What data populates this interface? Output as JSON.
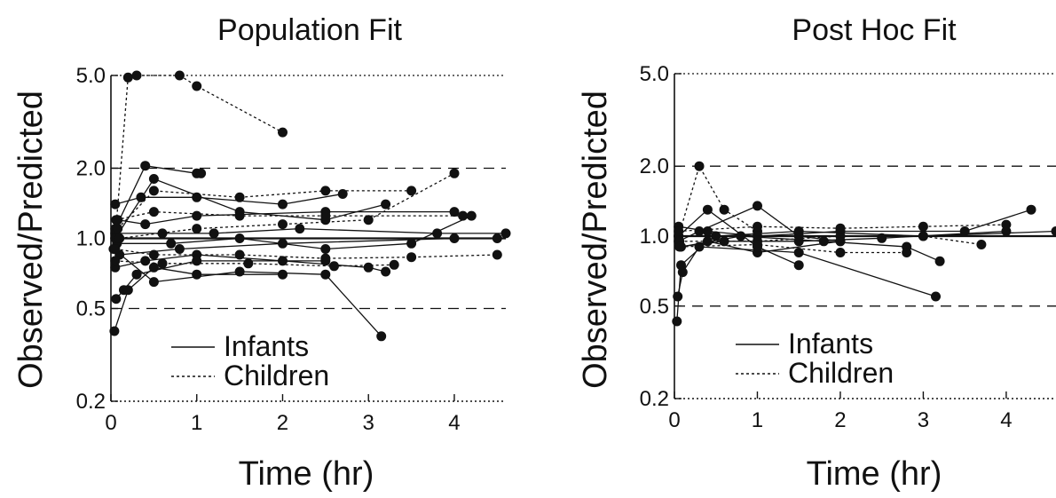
{
  "chart_data": [
    {
      "type": "line",
      "title": "Population Fit",
      "xlabel": "Time (hr)",
      "ylabel": "Observed/Predicted",
      "xlim": [
        0,
        4.6
      ],
      "ylim": [
        0.2,
        5.0
      ],
      "yscale": "log",
      "xticks": [
        "0",
        "1",
        "2",
        "3",
        "4"
      ],
      "yticks": [
        "0.2",
        "0.5",
        "1.0",
        "2.0",
        "5.0"
      ],
      "reference_lines": [
        0.5,
        1.0,
        2.0,
        5.0
      ],
      "legend": {
        "position": "lower-left",
        "entries": [
          "Infants",
          "Children"
        ]
      },
      "series": [
        {
          "name": "Infants",
          "style": "solid",
          "points": [
            [
              0.05,
              1.1
            ],
            [
              0.4,
              2.05
            ],
            [
              1.0,
              1.9
            ],
            [
              1.05,
              1.9
            ]
          ]
        },
        {
          "name": "Infants",
          "style": "solid",
          "points": [
            [
              0.05,
              1.0
            ],
            [
              0.5,
              1.8
            ],
            [
              1.5,
              1.3
            ],
            [
              2.5,
              1.2
            ],
            [
              3.2,
              1.4
            ]
          ]
        },
        {
          "name": "Infants",
          "style": "solid",
          "points": [
            [
              0.03,
              0.9
            ],
            [
              0.5,
              0.65
            ],
            [
              1.5,
              0.72
            ],
            [
              2.5,
              0.7
            ],
            [
              3.15,
              0.38
            ]
          ]
        },
        {
          "name": "Infants",
          "style": "solid",
          "points": [
            [
              0.1,
              0.85
            ],
            [
              0.8,
              0.9
            ],
            [
              2.0,
              0.95
            ],
            [
              4.0,
              1.0
            ],
            [
              4.5,
              1.0
            ]
          ]
        },
        {
          "name": "Infants",
          "style": "solid",
          "points": [
            [
              0.08,
              1.2
            ],
            [
              0.4,
              1.15
            ],
            [
              1.0,
              1.25
            ],
            [
              2.5,
              1.3
            ],
            [
              4.0,
              1.3
            ]
          ]
        },
        {
          "name": "Infants",
          "style": "solid",
          "points": [
            [
              0.05,
              0.75
            ],
            [
              0.4,
              0.8
            ],
            [
              1.0,
              0.85
            ],
            [
              2.0,
              0.8
            ],
            [
              3.0,
              0.75
            ],
            [
              3.2,
              0.72
            ]
          ]
        },
        {
          "name": "Infants",
          "style": "solid",
          "points": [
            [
              0.06,
              0.55
            ],
            [
              0.15,
              0.6
            ],
            [
              0.3,
              0.7
            ],
            [
              1.0,
              0.8
            ],
            [
              2.5,
              0.8
            ]
          ]
        },
        {
          "name": "Infants",
          "style": "solid",
          "points": [
            [
              0.05,
              1.05
            ],
            [
              0.6,
              1.05
            ],
            [
              1.2,
              1.05
            ],
            [
              2.2,
              1.1
            ],
            [
              3.8,
              1.05
            ],
            [
              4.6,
              1.05
            ]
          ]
        },
        {
          "name": "Infants",
          "style": "solid",
          "points": [
            [
              0.04,
              0.4
            ],
            [
              0.2,
              0.6
            ],
            [
              0.5,
              0.75
            ],
            [
              1.0,
              0.7
            ],
            [
              2.0,
              0.7
            ]
          ]
        },
        {
          "name": "Infants",
          "style": "solid",
          "points": [
            [
              0.05,
              1.4
            ],
            [
              0.35,
              1.5
            ],
            [
              1.0,
              1.5
            ],
            [
              2.0,
              1.4
            ],
            [
              2.7,
              1.55
            ]
          ]
        },
        {
          "name": "Infants",
          "style": "solid",
          "points": [
            [
              0.07,
              0.95
            ],
            [
              0.7,
              0.95
            ],
            [
              1.5,
              1.0
            ],
            [
              2.5,
              0.9
            ],
            [
              3.5,
              0.95
            ],
            [
              4.2,
              1.25
            ]
          ]
        },
        {
          "name": "Children",
          "style": "dashed",
          "points": [
            [
              0.05,
              1.0
            ],
            [
              0.2,
              4.9
            ],
            [
              0.3,
              5.0
            ],
            [
              0.8,
              5.0
            ],
            [
              1.0,
              4.5
            ],
            [
              2.0,
              2.85
            ]
          ]
        },
        {
          "name": "Children",
          "style": "dashed",
          "points": [
            [
              0.08,
              1.1
            ],
            [
              0.5,
              1.6
            ],
            [
              1.5,
              1.5
            ],
            [
              2.5,
              1.6
            ],
            [
              3.5,
              1.6
            ]
          ]
        },
        {
          "name": "Children",
          "style": "dashed",
          "points": [
            [
              0.05,
              0.9
            ],
            [
              0.5,
              0.85
            ],
            [
              1.5,
              0.85
            ],
            [
              2.5,
              0.82
            ],
            [
              3.5,
              0.83
            ],
            [
              4.5,
              0.85
            ]
          ]
        },
        {
          "name": "Children",
          "style": "dashed",
          "points": [
            [
              0.1,
              1.0
            ],
            [
              1.0,
              1.1
            ],
            [
              2.0,
              1.15
            ],
            [
              3.0,
              1.2
            ],
            [
              4.0,
              1.9
            ]
          ]
        },
        {
          "name": "Children",
          "style": "dashed",
          "points": [
            [
              0.05,
              0.8
            ],
            [
              0.6,
              0.78
            ],
            [
              1.6,
              0.78
            ],
            [
              2.6,
              0.76
            ],
            [
              3.3,
              0.77
            ]
          ]
        },
        {
          "name": "Children",
          "style": "dashed",
          "points": [
            [
              0.06,
              1.2
            ],
            [
              0.5,
              1.3
            ],
            [
              1.5,
              1.25
            ],
            [
              2.5,
              1.25
            ],
            [
              4.1,
              1.25
            ]
          ]
        }
      ]
    },
    {
      "type": "line",
      "title": "Post Hoc Fit",
      "xlabel": "Time (hr)",
      "ylabel": "Observed/Predicted",
      "xlim": [
        0,
        4.6
      ],
      "ylim": [
        0.2,
        5.0
      ],
      "yscale": "log",
      "xticks": [
        "0",
        "1",
        "2",
        "3",
        "4"
      ],
      "yticks": [
        "0.2",
        "0.5",
        "1.0",
        "2.0",
        "5.0"
      ],
      "reference_lines": [
        0.5,
        1.0,
        2.0,
        5.0
      ],
      "legend": {
        "position": "lower-left",
        "entries": [
          "Infants",
          "Children"
        ]
      },
      "series": [
        {
          "name": "Infants",
          "style": "solid",
          "points": [
            [
              0.05,
              0.95
            ],
            [
              0.3,
              1.05
            ],
            [
              1.0,
              1.35
            ],
            [
              1.5,
              1.0
            ],
            [
              2.0,
              0.95
            ]
          ]
        },
        {
          "name": "Infants",
          "style": "solid",
          "points": [
            [
              0.05,
              1.0
            ],
            [
              0.5,
              1.0
            ],
            [
              1.5,
              1.05
            ],
            [
              3.0,
              1.0
            ],
            [
              4.6,
              1.05
            ]
          ]
        },
        {
          "name": "Infants",
          "style": "solid",
          "points": [
            [
              0.04,
              0.55
            ],
            [
              0.1,
              0.7
            ],
            [
              0.3,
              0.9
            ],
            [
              1.5,
              0.85
            ],
            [
              3.15,
              0.55
            ]
          ]
        },
        {
          "name": "Infants",
          "style": "solid",
          "points": [
            [
              0.06,
              0.9
            ],
            [
              0.6,
              0.95
            ],
            [
              1.5,
              0.95
            ],
            [
              2.5,
              0.98
            ],
            [
              4.0,
              1.05
            ]
          ]
        },
        {
          "name": "Infants",
          "style": "solid",
          "points": [
            [
              0.05,
              1.1
            ],
            [
              0.4,
              1.05
            ],
            [
              1.0,
              1.0
            ],
            [
              2.0,
              1.05
            ],
            [
              3.5,
              1.05
            ],
            [
              4.3,
              1.3
            ]
          ]
        },
        {
          "name": "Infants",
          "style": "solid",
          "points": [
            [
              0.03,
              0.43
            ],
            [
              0.08,
              0.75
            ],
            [
              0.4,
              0.95
            ],
            [
              1.0,
              0.85
            ],
            [
              2.0,
              0.95
            ]
          ]
        },
        {
          "name": "Infants",
          "style": "solid",
          "points": [
            [
              0.05,
              1.0
            ],
            [
              0.4,
              1.3
            ],
            [
              1.0,
              0.9
            ],
            [
              1.5,
              0.75
            ]
          ]
        },
        {
          "name": "Infants",
          "style": "solid",
          "points": [
            [
              0.08,
              0.9
            ],
            [
              0.8,
              1.0
            ],
            [
              1.8,
              0.95
            ],
            [
              2.8,
              0.9
            ],
            [
              3.2,
              0.78
            ]
          ]
        },
        {
          "name": "Children",
          "style": "dashed",
          "points": [
            [
              0.05,
              1.0
            ],
            [
              0.3,
              2.0
            ],
            [
              0.6,
              1.3
            ],
            [
              1.0,
              1.05
            ]
          ]
        },
        {
          "name": "Children",
          "style": "dashed",
          "points": [
            [
              0.06,
              0.95
            ],
            [
              1.0,
              0.95
            ],
            [
              2.0,
              1.0
            ],
            [
              3.0,
              1.0
            ],
            [
              3.7,
              0.92
            ]
          ]
        },
        {
          "name": "Children",
          "style": "dashed",
          "points": [
            [
              0.05,
              1.05
            ],
            [
              1.0,
              1.1
            ],
            [
              2.0,
              1.08
            ],
            [
              3.0,
              1.1
            ],
            [
              4.0,
              1.12
            ]
          ]
        },
        {
          "name": "Children",
          "style": "dashed",
          "points": [
            [
              0.07,
              0.9
            ],
            [
              1.0,
              0.92
            ],
            [
              2.0,
              0.85
            ],
            [
              2.8,
              0.85
            ]
          ]
        }
      ]
    }
  ]
}
